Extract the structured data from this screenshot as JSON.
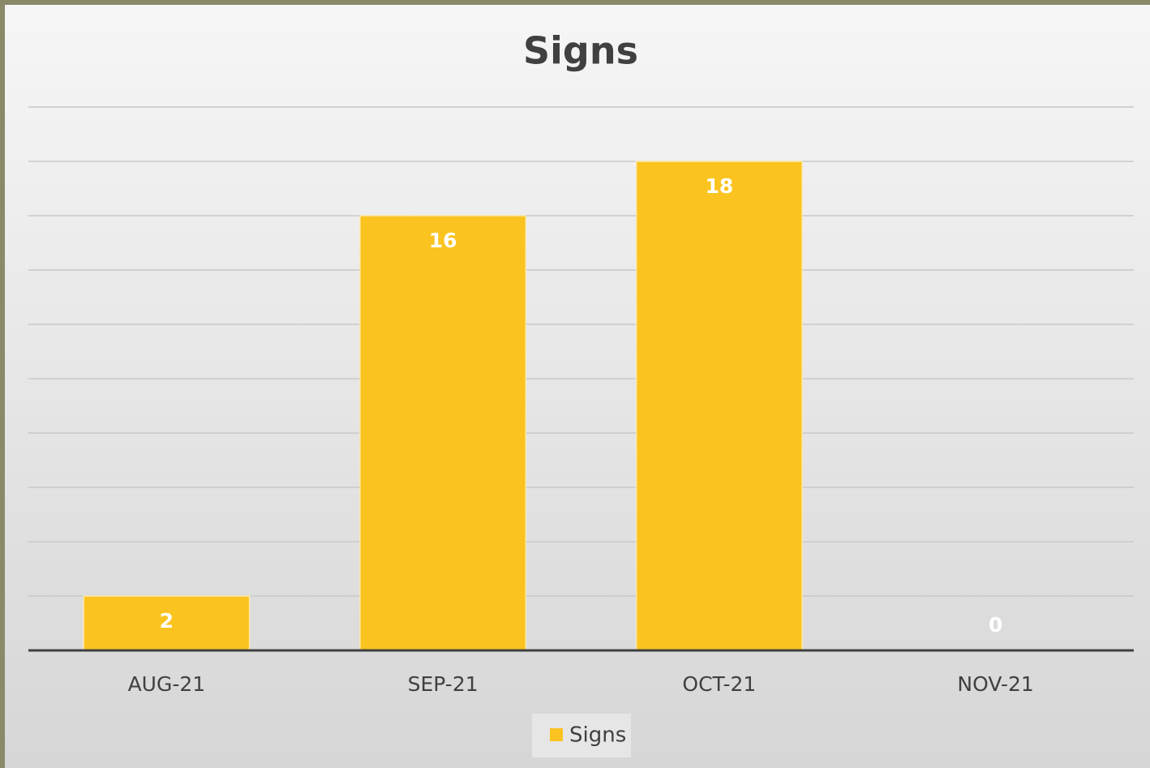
{
  "chart_data": {
    "type": "bar",
    "title": "Signs",
    "categories": [
      "AUG-21",
      "SEP-21",
      "OCT-21",
      "NOV-21"
    ],
    "series": [
      {
        "name": "Signs",
        "color": "#fac31f",
        "values": [
          2,
          16,
          18,
          0
        ]
      }
    ],
    "ylim": [
      0,
      20
    ],
    "yticks": [
      0,
      2,
      4,
      6,
      8,
      10,
      12,
      14,
      16,
      18,
      20
    ],
    "grid": true,
    "legend": "bottom"
  }
}
